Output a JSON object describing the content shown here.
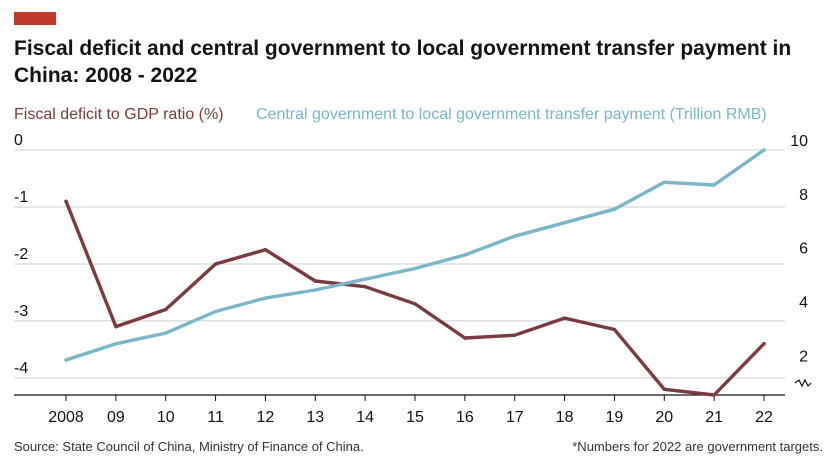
{
  "header": {
    "title": "Fiscal deficit and central government to local government transfer payment in China: 2008 - 2022",
    "accent_color": "#c0392b"
  },
  "footer": {
    "source": "Source: State Council of China, Ministry of Finance of China.",
    "note": "*Numbers for 2022 are government targets."
  },
  "chart_data": {
    "type": "line",
    "title": "Fiscal deficit and central government to local government transfer payment in China: 2008 - 2022",
    "ylabel_left": "Fiscal deficit to GDP ratio (%)",
    "ylabel_right": "Central government to local government transfer payment (Trillion RMB)",
    "x_tick_labels": [
      "2008",
      "09",
      "10",
      "11",
      "12",
      "13",
      "14",
      "15",
      "16",
      "17",
      "18",
      "19",
      "20",
      "21",
      "22"
    ],
    "x": [
      2008,
      2009,
      2010,
      2011,
      2012,
      2013,
      2014,
      2015,
      2016,
      2017,
      2018,
      2019,
      2020,
      2021,
      2022
    ],
    "left_axis": {
      "ticks": [
        0,
        -1,
        -2,
        -3,
        -4
      ],
      "range": [
        -4.3,
        0
      ]
    },
    "right_axis": {
      "ticks": [
        10,
        8,
        6,
        4,
        2
      ],
      "range": [
        0.9,
        10
      ],
      "axis_break": true
    },
    "grid": true,
    "series": [
      {
        "name": "Fiscal deficit to GDP ratio (%)",
        "axis": "left",
        "color": "#7a3b3f",
        "values": [
          -0.9,
          -3.1,
          -2.8,
          -2.0,
          -1.75,
          -2.3,
          -2.4,
          -2.7,
          -3.3,
          -3.25,
          -2.95,
          -3.15,
          -4.2,
          -4.3,
          -3.4
        ]
      },
      {
        "name": "Central government to local government transfer payment (Trillion RMB)",
        "axis": "right",
        "color": "#79b6c8",
        "values": [
          2.2,
          2.8,
          3.2,
          4.0,
          4.5,
          4.8,
          5.2,
          5.6,
          6.1,
          6.8,
          7.3,
          7.8,
          8.8,
          8.7,
          10.0
        ]
      }
    ]
  }
}
